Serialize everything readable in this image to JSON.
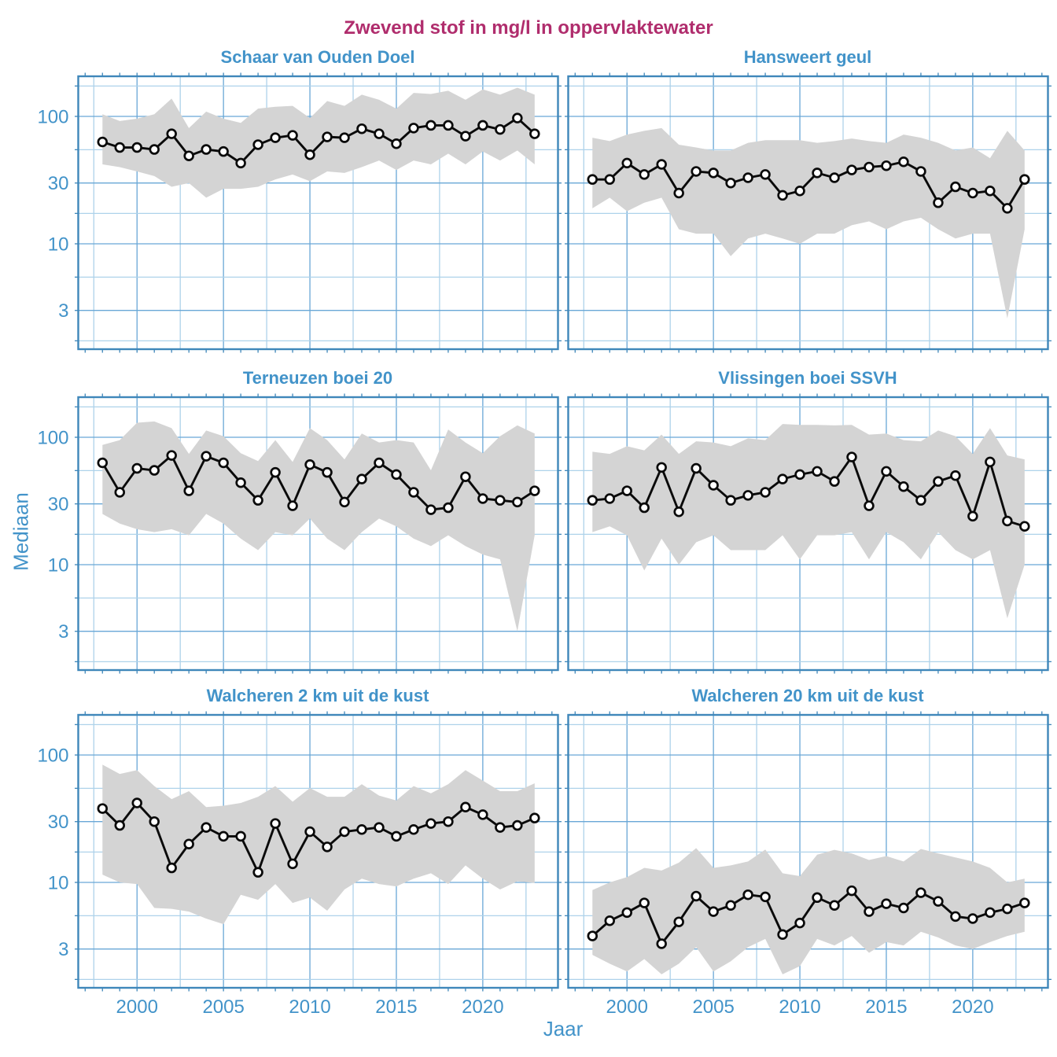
{
  "colors": {
    "title": "#b02d6d",
    "axis_text": "#4293c9",
    "grid_major": "#69a7d6",
    "grid_minor": "#aed2ea",
    "border": "#3f87ba",
    "band": "#d4d4d4",
    "line": "#0a0a0a",
    "marker_fill": "#ffffff"
  },
  "chart_data": {
    "type": "line",
    "title": "Zwevend stof in mg/l in oppervlaktewater",
    "xlabel": "Jaar",
    "ylabel": "Mediaan",
    "y_scale": "log10",
    "grid": true,
    "legend": "none",
    "ylim": [
      1.5,
      206
    ],
    "xlim": [
      1996.6,
      2024.35
    ],
    "y_tick_values": [
      100,
      30,
      10,
      3
    ],
    "y_tick_labels": [
      "100",
      "30",
      "10",
      "3"
    ],
    "x_tick_values": [
      2000,
      2005,
      2010,
      2015,
      2020
    ],
    "x_tick_labels": [
      "2000",
      "2005",
      "2010",
      "2015",
      "2020"
    ],
    "x": [
      1998,
      1999,
      2000,
      2001,
      2002,
      2003,
      2004,
      2005,
      2006,
      2007,
      2008,
      2009,
      2010,
      2011,
      2012,
      2013,
      2014,
      2015,
      2016,
      2017,
      2018,
      2019,
      2020,
      2021,
      2022,
      2023
    ],
    "panels": [
      {
        "title": "Schaar van Ouden Doel",
        "median": [
          63,
          57,
          57,
          55,
          73,
          49,
          55,
          53,
          43,
          60,
          68,
          71,
          50,
          69,
          68,
          80,
          73,
          61,
          81,
          85,
          85,
          70,
          85,
          79,
          97,
          73
        ],
        "upper": [
          104,
          92,
          96,
          104,
          138,
          81,
          109,
          96,
          89,
          115,
          119,
          121,
          97,
          132,
          121,
          148,
          135,
          115,
          153,
          150,
          159,
          135,
          163,
          148,
          168,
          148
        ],
        "lower": [
          42,
          40,
          37,
          34,
          28,
          30,
          23,
          27,
          27,
          28,
          32,
          35,
          31,
          37,
          36,
          40,
          45,
          38,
          45,
          42,
          51,
          42,
          53,
          45,
          54,
          42
        ]
      },
      {
        "title": "Hansweert geul",
        "median": [
          32,
          32,
          43,
          35,
          42,
          25,
          37,
          36,
          30,
          33,
          35,
          24,
          26,
          36,
          33,
          38,
          40,
          41,
          44,
          37,
          21,
          28,
          25,
          26,
          19,
          32
        ],
        "upper": [
          68,
          64,
          72,
          77,
          81,
          60,
          57,
          54,
          54,
          62,
          65,
          65,
          65,
          62,
          64,
          67,
          64,
          62,
          72,
          68,
          62,
          54,
          57,
          47,
          77,
          54
        ],
        "lower": [
          19,
          23,
          18,
          21,
          23,
          13,
          12,
          12,
          8,
          11,
          12,
          11,
          10,
          12,
          12,
          14,
          15,
          13,
          15,
          16,
          13,
          11,
          12,
          12,
          2.6,
          13
        ]
      },
      {
        "title": "Terneuzen boei 20",
        "median": [
          63,
          37,
          57,
          55,
          72,
          38,
          71,
          63,
          44,
          32,
          53,
          29,
          61,
          53,
          31,
          47,
          63,
          51,
          37,
          27,
          28,
          49,
          33,
          32,
          31,
          38
        ],
        "upper": [
          87,
          95,
          130,
          133,
          118,
          74,
          113,
          102,
          75,
          65,
          95,
          64,
          118,
          95,
          67,
          107,
          91,
          95,
          91,
          55,
          115,
          91,
          75,
          102,
          124,
          107
        ],
        "lower": [
          25,
          21,
          19,
          18,
          19,
          17,
          25,
          21,
          16,
          13,
          18,
          17,
          23,
          16,
          13,
          18,
          23,
          20,
          16,
          14,
          17,
          14,
          12,
          11,
          3,
          17
        ]
      },
      {
        "title": "Vlissingen boei SSVH",
        "median": [
          32,
          33,
          38,
          28,
          58,
          26,
          57,
          42,
          32,
          35,
          37,
          47,
          51,
          54,
          45,
          70,
          29,
          54,
          41,
          32,
          45,
          50,
          24,
          64,
          22,
          20
        ],
        "upper": [
          77,
          74,
          85,
          79,
          105,
          74,
          93,
          91,
          85,
          98,
          95,
          127,
          125,
          125,
          124,
          125,
          105,
          107,
          95,
          93,
          113,
          102,
          74,
          118,
          72,
          67
        ],
        "lower": [
          18,
          20,
          17,
          9,
          16,
          10,
          15,
          17,
          13,
          13,
          13,
          17,
          11,
          17,
          17,
          18,
          11,
          18,
          15,
          11,
          18,
          13,
          11,
          13,
          3.8,
          10
        ]
      },
      {
        "title": "Walcheren 2 km uit de kust",
        "median": [
          38,
          28,
          42,
          30,
          13,
          20,
          27,
          23,
          23,
          12,
          29,
          14,
          25,
          19,
          25,
          26,
          27,
          23,
          26,
          29,
          30,
          39,
          34,
          27,
          28,
          32
        ],
        "upper": [
          84,
          71,
          76,
          57,
          45,
          52,
          39,
          40,
          42,
          47,
          57,
          43,
          55,
          47,
          47,
          59,
          48,
          44,
          57,
          50,
          59,
          76,
          63,
          52,
          52,
          60
        ],
        "lower": [
          11.5,
          10,
          9.7,
          6.3,
          6.2,
          5.9,
          5.2,
          4.7,
          8,
          7.3,
          9.7,
          6.9,
          7.6,
          6,
          8.8,
          10.7,
          9.7,
          9.3,
          10.7,
          11.8,
          9.7,
          13.6,
          10.7,
          8.8,
          10.2,
          9.9
        ]
      },
      {
        "title": "Walcheren 20 km uit de kust",
        "median": [
          3.8,
          5,
          5.8,
          6.9,
          3.3,
          4.9,
          7.8,
          5.9,
          6.6,
          8,
          7.7,
          3.9,
          4.8,
          7.6,
          6.6,
          8.6,
          5.9,
          6.8,
          6.3,
          8.3,
          7.1,
          5.4,
          5.2,
          5.8,
          6.2,
          6.9
        ],
        "upper": [
          8.7,
          10,
          11,
          13,
          12.4,
          14.3,
          18.6,
          13,
          13.6,
          14.6,
          18.1,
          11.8,
          11.2,
          16.5,
          18,
          16.9,
          15,
          16.1,
          14.6,
          18.3,
          16.9,
          15.7,
          14.6,
          13,
          10,
          10.7
        ],
        "lower": [
          2.7,
          2.3,
          2,
          2.5,
          1.9,
          2.3,
          3.1,
          2,
          2.4,
          3.1,
          3.6,
          1.9,
          2.2,
          3.6,
          3.2,
          3.8,
          2.8,
          3.4,
          3.2,
          4.1,
          3.7,
          3.2,
          3,
          3.4,
          3.8,
          4.1
        ]
      }
    ]
  }
}
